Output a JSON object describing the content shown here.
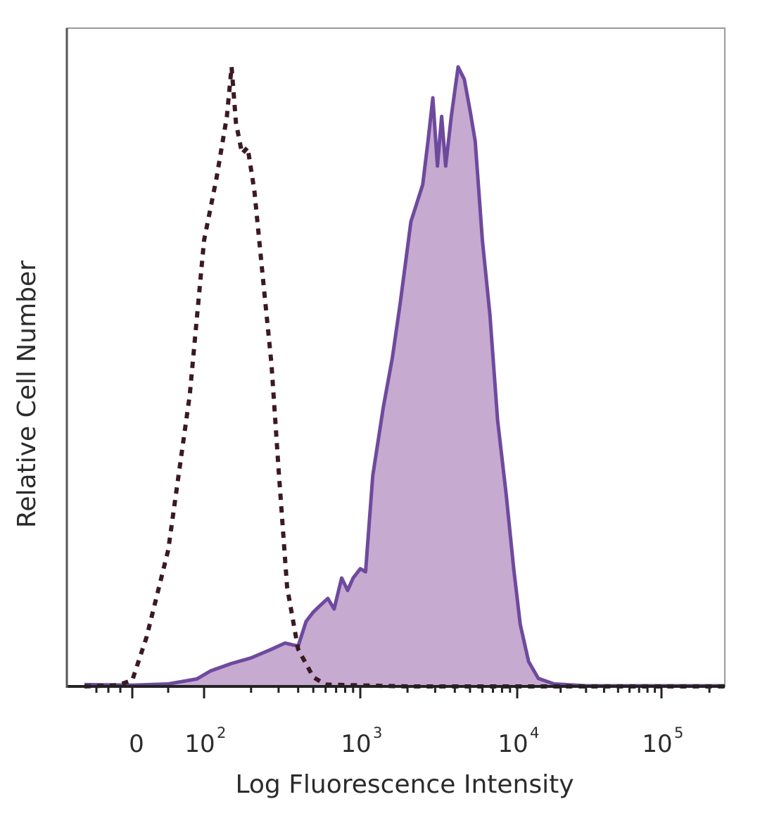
{
  "chart_data": {
    "type": "area",
    "title": "",
    "xlabel": "Log Fluorescence Intensity",
    "ylabel": "Relative Cell Number",
    "x_scale": "biexponential",
    "x_range": [
      -200,
      250000
    ],
    "y_range": [
      0,
      100
    ],
    "grid": false,
    "legend": "none",
    "x_ticks": [
      {
        "value": 0,
        "base": "0",
        "exp": ""
      },
      {
        "value": 100,
        "base": "10",
        "exp": "2"
      },
      {
        "value": 1000,
        "base": "10",
        "exp": "3"
      },
      {
        "value": 10000,
        "base": "10",
        "exp": "4"
      },
      {
        "value": 100000,
        "base": "10",
        "exp": "5"
      }
    ],
    "series": [
      {
        "style": "dotted",
        "color": "#3a1a22",
        "fill": "none",
        "points": [
          [
            -200,
            0
          ],
          [
            -60,
            0.2
          ],
          [
            0,
            1.0
          ],
          [
            20,
            8
          ],
          [
            50,
            22
          ],
          [
            80,
            47
          ],
          [
            100,
            72
          ],
          [
            120,
            82
          ],
          [
            140,
            92
          ],
          [
            150,
            100
          ],
          [
            160,
            91
          ],
          [
            175,
            86
          ],
          [
            190,
            87
          ],
          [
            210,
            80
          ],
          [
            240,
            65
          ],
          [
            270,
            52
          ],
          [
            300,
            35
          ],
          [
            340,
            16
          ],
          [
            400,
            6
          ],
          [
            500,
            1.5
          ],
          [
            600,
            0.3
          ],
          [
            2000,
            0
          ],
          [
            10000,
            0
          ],
          [
            250000,
            0
          ]
        ]
      },
      {
        "style": "solid",
        "color": "#6e4a9e",
        "fill": "#c6aad0",
        "points": [
          [
            -200,
            0.3
          ],
          [
            0,
            0.2
          ],
          [
            50,
            0.4
          ],
          [
            90,
            1.2
          ],
          [
            110,
            2.5
          ],
          [
            150,
            3.7
          ],
          [
            200,
            4.6
          ],
          [
            270,
            6
          ],
          [
            330,
            7
          ],
          [
            400,
            6.5
          ],
          [
            450,
            10.5
          ],
          [
            500,
            12
          ],
          [
            550,
            13
          ],
          [
            620,
            14.2
          ],
          [
            680,
            12.5
          ],
          [
            760,
            17.5
          ],
          [
            830,
            15.5
          ],
          [
            900,
            17.5
          ],
          [
            1000,
            19
          ],
          [
            1080,
            18.5
          ],
          [
            1200,
            34
          ],
          [
            1400,
            45
          ],
          [
            1600,
            53
          ],
          [
            1800,
            62
          ],
          [
            2100,
            75
          ],
          [
            2500,
            81
          ],
          [
            2700,
            88
          ],
          [
            2900,
            95
          ],
          [
            3100,
            84
          ],
          [
            3300,
            92
          ],
          [
            3500,
            84
          ],
          [
            3800,
            92
          ],
          [
            4200,
            100
          ],
          [
            4600,
            98
          ],
          [
            5000,
            93
          ],
          [
            5400,
            88
          ],
          [
            6000,
            72
          ],
          [
            6700,
            60
          ],
          [
            7500,
            43
          ],
          [
            8500,
            31
          ],
          [
            9500,
            19
          ],
          [
            10500,
            10
          ],
          [
            12000,
            4
          ],
          [
            14000,
            1.3
          ],
          [
            18000,
            0.4
          ],
          [
            30000,
            0.1
          ],
          [
            100000,
            0.1
          ],
          [
            250000,
            0.1
          ]
        ]
      }
    ]
  }
}
